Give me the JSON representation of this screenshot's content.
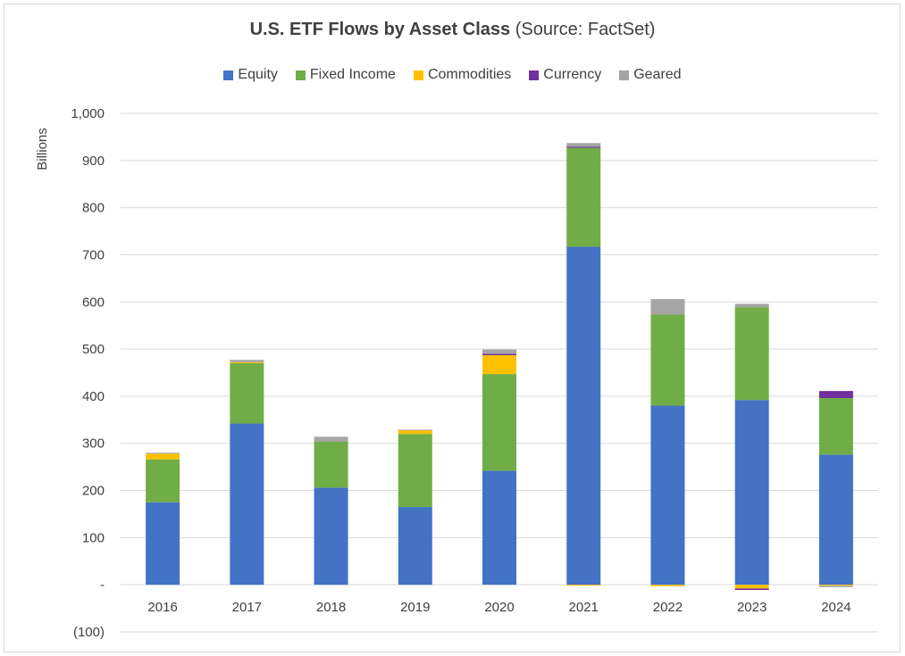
{
  "chart_data": {
    "type": "bar",
    "stacked": true,
    "title": "U.S. ETF Flows by Asset Class",
    "subtitle": "(Source: FactSet)",
    "ylabel": "Billions",
    "xlabel": "",
    "ylim": [
      -100,
      1000
    ],
    "yticks": [
      1000,
      900,
      800,
      700,
      600,
      500,
      400,
      300,
      200,
      100,
      0,
      -100
    ],
    "ytick_labels": [
      "1,000",
      "900",
      "800",
      "700",
      "600",
      "500",
      "400",
      "300",
      "200",
      "100",
      "-",
      "(100)"
    ],
    "grid": true,
    "legend_position": "top",
    "categories": [
      "2016",
      "2017",
      "2018",
      "2019",
      "2020",
      "2021",
      "2022",
      "2023",
      "2024"
    ],
    "series": [
      {
        "name": "Equity",
        "color": "#4472C4",
        "values": [
          175,
          342,
          206,
          165,
          242,
          717,
          380,
          392,
          276
        ]
      },
      {
        "name": "Fixed Income",
        "color": "#70AD47",
        "values": [
          91,
          128,
          98,
          155,
          205,
          210,
          193,
          197,
          120
        ]
      },
      {
        "name": "Commodities",
        "color": "#FFC000",
        "values": [
          12,
          2,
          0,
          8,
          40,
          -2,
          -3,
          -8,
          -2
        ]
      },
      {
        "name": "Currency",
        "color": "#7030A0",
        "values": [
          0,
          0,
          0,
          0,
          3,
          2,
          0,
          -3,
          15
        ]
      },
      {
        "name": "Geared",
        "color": "#A5A5A5",
        "values": [
          2,
          5,
          10,
          1,
          9,
          8,
          33,
          7,
          -3
        ]
      }
    ]
  }
}
